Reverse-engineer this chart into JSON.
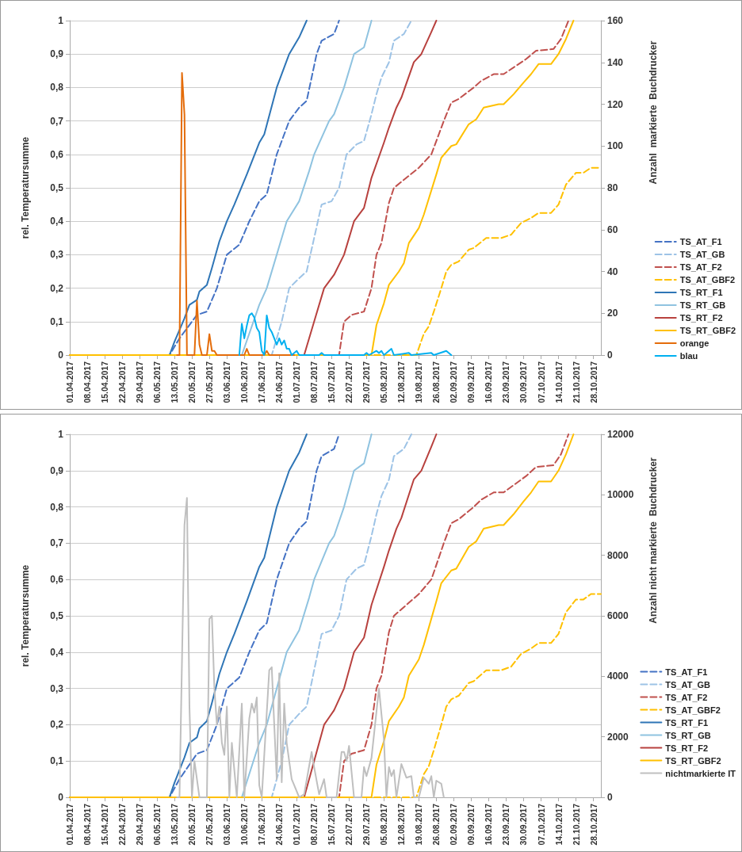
{
  "chart_data": [
    {
      "type": "line",
      "ylabel": "rel. Temperatursumme",
      "y2label": "Anzahl  markierte  Buchdrucker",
      "grid": "y",
      "legend": "right",
      "marker": "none",
      "xlim": [
        "2017-04-01",
        "2017-10-31"
      ],
      "xticks": [
        {
          "value": "2017-04-01",
          "label": "01.04.2017"
        },
        {
          "value": "2017-04-08",
          "label": "08.04.2017"
        },
        {
          "value": "2017-04-15",
          "label": "15.04.2017"
        },
        {
          "value": "2017-04-22",
          "label": "22.04.2017"
        },
        {
          "value": "2017-04-29",
          "label": "29.04.2017"
        },
        {
          "value": "2017-05-06",
          "label": "06.05.2017"
        },
        {
          "value": "2017-05-13",
          "label": "13.05.2017"
        },
        {
          "value": "2017-05-20",
          "label": "20.05.2017"
        },
        {
          "value": "2017-05-27",
          "label": "27.05.2017"
        },
        {
          "value": "2017-06-03",
          "label": "03.06.2017"
        },
        {
          "value": "2017-06-10",
          "label": "10.06.2017"
        },
        {
          "value": "2017-06-17",
          "label": "17.06.2017"
        },
        {
          "value": "2017-06-24",
          "label": "24.06.2017"
        },
        {
          "value": "2017-07-01",
          "label": "01.07.2017"
        },
        {
          "value": "2017-07-08",
          "label": "08.07.2017"
        },
        {
          "value": "2017-07-15",
          "label": "15.07.2017"
        },
        {
          "value": "2017-07-22",
          "label": "22.07.2017"
        },
        {
          "value": "2017-07-29",
          "label": "29.07.2017"
        },
        {
          "value": "2017-08-05",
          "label": "05.08.2017"
        },
        {
          "value": "2017-08-12",
          "label": "12.08.2017"
        },
        {
          "value": "2017-08-19",
          "label": "19.08.2017"
        },
        {
          "value": "2017-08-26",
          "label": "26.08.2017"
        },
        {
          "value": "2017-09-02",
          "label": "02.09.2017"
        },
        {
          "value": "2017-09-09",
          "label": "09.09.2017"
        },
        {
          "value": "2017-09-16",
          "label": "16.09.2017"
        },
        {
          "value": "2017-09-23",
          "label": "23.09.2017"
        },
        {
          "value": "2017-09-30",
          "label": "30.09.2017"
        },
        {
          "value": "2017-10-07",
          "label": "07.10.2017"
        },
        {
          "value": "2017-10-14",
          "label": "14.10.2017"
        },
        {
          "value": "2017-10-21",
          "label": "21.10.2017"
        },
        {
          "value": "2017-10-28",
          "label": "28.10.2017"
        }
      ],
      "ylim": [
        0,
        1
      ],
      "yticks": [
        {
          "value": 0,
          "label": "0"
        },
        {
          "value": 0.1,
          "label": "0,1"
        },
        {
          "value": 0.2,
          "label": "0,2"
        },
        {
          "value": 0.3,
          "label": "0,3"
        },
        {
          "value": 0.4,
          "label": "0,4"
        },
        {
          "value": 0.5,
          "label": "0,5"
        },
        {
          "value": 0.6,
          "label": "0,6"
        },
        {
          "value": 0.7,
          "label": "0,7"
        },
        {
          "value": 0.8,
          "label": "0,8"
        },
        {
          "value": 0.9,
          "label": "0,9"
        },
        {
          "value": 1,
          "label": "1"
        }
      ],
      "y2lim": [
        0,
        160
      ],
      "y2ticks": [
        0,
        20,
        40,
        60,
        80,
        100,
        120,
        140,
        160
      ],
      "series": [
        {
          "name": "TS_AT_F1",
          "color": "#4472c4",
          "line_style": "dashed",
          "x": [
            "2017-04-01",
            "2017-05-11",
            "2017-05-15",
            "2017-05-22",
            "2017-05-26",
            "2017-05-30",
            "2017-06-03",
            "2017-06-08",
            "2017-06-12",
            "2017-06-16",
            "2017-06-19",
            "2017-06-23",
            "2017-06-28",
            "2017-07-02",
            "2017-07-05",
            "2017-07-09",
            "2017-07-11",
            "2017-07-16",
            "2017-07-18"
          ],
          "values": [
            0,
            0,
            0.05,
            0.12,
            0.13,
            0.2,
            0.3,
            0.33,
            0.4,
            0.46,
            0.48,
            0.6,
            0.7,
            0.74,
            0.76,
            0.9,
            0.94,
            0.96,
            1
          ]
        },
        {
          "name": "TS_AT_GB",
          "color": "#9dc3e6",
          "line_style": "dashed",
          "x": [
            "2017-04-01",
            "2017-06-21",
            "2017-06-25",
            "2017-06-28",
            "2017-07-02",
            "2017-07-05",
            "2017-07-11",
            "2017-07-15",
            "2017-07-18",
            "2017-07-21",
            "2017-07-25",
            "2017-07-28",
            "2017-07-31",
            "2017-08-02",
            "2017-08-04",
            "2017-08-07",
            "2017-08-09",
            "2017-08-13",
            "2017-08-16"
          ],
          "values": [
            0,
            0,
            0.1,
            0.2,
            0.23,
            0.25,
            0.45,
            0.46,
            0.5,
            0.6,
            0.63,
            0.64,
            0.72,
            0.78,
            0.83,
            0.875,
            0.94,
            0.96,
            1
          ]
        },
        {
          "name": "TS_AT_F2",
          "color": "#c0504d",
          "line_style": "dashed",
          "x": [
            "2017-04-01",
            "2017-07-18",
            "2017-07-20",
            "2017-07-23",
            "2017-07-28",
            "2017-07-31",
            "2017-08-02",
            "2017-08-04",
            "2017-08-07",
            "2017-08-09",
            "2017-08-14",
            "2017-08-19",
            "2017-08-24",
            "2017-08-29",
            "2017-09-01",
            "2017-09-04",
            "2017-09-10",
            "2017-09-13",
            "2017-09-18",
            "2017-09-22",
            "2017-09-26",
            "2017-10-01",
            "2017-10-05",
            "2017-10-12",
            "2017-10-15",
            "2017-10-18"
          ],
          "values": [
            0,
            0,
            0.1,
            0.12,
            0.13,
            0.2,
            0.3,
            0.335,
            0.455,
            0.5,
            0.53,
            0.56,
            0.6,
            0.7,
            0.755,
            0.766,
            0.8,
            0.82,
            0.84,
            0.84,
            0.86,
            0.885,
            0.91,
            0.915,
            0.945,
            1
          ]
        },
        {
          "name": "TS_AT_GBF2",
          "color": "#ffc000",
          "line_style": "dashed",
          "x": [
            "2017-04-01",
            "2017-08-18",
            "2017-08-21",
            "2017-08-23",
            "2017-08-25",
            "2017-08-28",
            "2017-08-30",
            "2017-09-01",
            "2017-09-04",
            "2017-09-08",
            "2017-09-10",
            "2017-09-15",
            "2017-09-21",
            "2017-09-25",
            "2017-09-29",
            "2017-10-03",
            "2017-10-06",
            "2017-10-11",
            "2017-10-14",
            "2017-10-17",
            "2017-10-21",
            "2017-10-24",
            "2017-10-27",
            "2017-10-31"
          ],
          "values": [
            0,
            0,
            0.064,
            0.086,
            0.13,
            0.2,
            0.25,
            0.27,
            0.28,
            0.315,
            0.32,
            0.35,
            0.35,
            0.36,
            0.395,
            0.41,
            0.425,
            0.425,
            0.45,
            0.51,
            0.545,
            0.545,
            0.56,
            0.56
          ]
        },
        {
          "name": "TS_RT_F1",
          "color": "#2e75b6",
          "line_style": "solid",
          "x": [
            "2017-04-01",
            "2017-05-11",
            "2017-05-13",
            "2017-05-17",
            "2017-05-19",
            "2017-05-22",
            "2017-05-23",
            "2017-05-26",
            "2017-05-28",
            "2017-05-31",
            "2017-06-03",
            "2017-06-06",
            "2017-06-11",
            "2017-06-16",
            "2017-06-18",
            "2017-06-23",
            "2017-06-28",
            "2017-07-02",
            "2017-07-05"
          ],
          "values": [
            0,
            0,
            0.04,
            0.11,
            0.15,
            0.165,
            0.19,
            0.21,
            0.26,
            0.34,
            0.4,
            0.45,
            0.54,
            0.635,
            0.66,
            0.8,
            0.9,
            0.95,
            1
          ]
        },
        {
          "name": "TS_RT_GB",
          "color": "#8fc3e0",
          "line_style": "solid",
          "x": [
            "2017-04-01",
            "2017-06-09",
            "2017-06-16",
            "2017-06-19",
            "2017-06-27",
            "2017-07-02",
            "2017-07-06",
            "2017-07-08",
            "2017-07-14",
            "2017-07-16",
            "2017-07-20",
            "2017-07-24",
            "2017-07-28",
            "2017-07-31"
          ],
          "values": [
            0,
            0,
            0.15,
            0.2,
            0.4,
            0.46,
            0.55,
            0.6,
            0.7,
            0.72,
            0.8,
            0.9,
            0.92,
            1
          ]
        },
        {
          "name": "TS_RT_F2",
          "color": "#b8413e",
          "line_style": "solid",
          "x": [
            "2017-04-01",
            "2017-07-04",
            "2017-07-08",
            "2017-07-12",
            "2017-07-14",
            "2017-07-16",
            "2017-07-20",
            "2017-07-24",
            "2017-07-28",
            "2017-07-31",
            "2017-08-05",
            "2017-08-07",
            "2017-08-10",
            "2017-08-12",
            "2017-08-17",
            "2017-08-20",
            "2017-08-24",
            "2017-08-26"
          ],
          "values": [
            0,
            0,
            0.1,
            0.2,
            0.22,
            0.24,
            0.3,
            0.4,
            0.44,
            0.53,
            0.635,
            0.68,
            0.74,
            0.77,
            0.876,
            0.9,
            0.966,
            1
          ]
        },
        {
          "name": "TS_RT_GBF2",
          "color": "#ffc000",
          "line_style": "solid",
          "x": [
            "2017-04-01",
            "2017-07-31",
            "2017-08-02",
            "2017-08-05",
            "2017-08-07",
            "2017-08-11",
            "2017-08-13",
            "2017-08-15",
            "2017-08-19",
            "2017-08-21",
            "2017-08-26",
            "2017-08-28",
            "2017-09-01",
            "2017-09-03",
            "2017-09-08",
            "2017-09-11",
            "2017-09-14",
            "2017-09-20",
            "2017-09-22",
            "2017-09-26",
            "2017-09-30",
            "2017-10-03",
            "2017-10-06",
            "2017-10-11",
            "2017-10-14",
            "2017-10-17",
            "2017-10-20"
          ],
          "values": [
            0,
            0,
            0.09,
            0.155,
            0.21,
            0.25,
            0.275,
            0.335,
            0.38,
            0.42,
            0.54,
            0.59,
            0.625,
            0.63,
            0.69,
            0.705,
            0.74,
            0.75,
            0.75,
            0.78,
            0.815,
            0.84,
            0.87,
            0.87,
            0.9,
            0.945,
            1
          ]
        },
        {
          "name": "orange",
          "color": "#e46c0a",
          "line_style": "solid",
          "axis": "y2",
          "x": [
            "2017-05-14",
            "2017-05-15",
            "2017-05-16",
            "2017-05-17",
            "2017-05-18",
            "2017-05-21",
            "2017-05-22",
            "2017-05-23",
            "2017-05-24",
            "2017-05-26",
            "2017-05-27",
            "2017-05-28",
            "2017-05-29",
            "2017-05-30",
            "2017-06-10",
            "2017-06-11",
            "2017-06-12",
            "2017-06-18",
            "2017-06-19",
            "2017-06-20",
            "2017-06-30"
          ],
          "values": [
            0,
            0,
            135,
            115,
            0,
            0,
            26,
            5,
            0,
            0,
            10,
            2,
            2,
            0,
            0,
            3,
            0,
            0,
            2,
            0,
            0
          ]
        },
        {
          "name": "blau",
          "color": "#00b0f0",
          "line_style": "solid",
          "axis": "y2",
          "x": [
            "2017-06-08",
            "2017-06-09",
            "2017-06-10",
            "2017-06-11",
            "2017-06-12",
            "2017-06-13",
            "2017-06-14",
            "2017-06-15",
            "2017-06-16",
            "2017-06-17",
            "2017-06-18",
            "2017-06-19",
            "2017-06-20",
            "2017-06-21",
            "2017-06-22",
            "2017-06-23",
            "2017-06-24",
            "2017-06-25",
            "2017-06-26",
            "2017-06-27",
            "2017-06-28",
            "2017-06-29",
            "2017-07-01",
            "2017-07-02",
            "2017-07-10",
            "2017-07-11",
            "2017-07-12",
            "2017-07-28",
            "2017-07-29",
            "2017-07-30",
            "2017-08-02",
            "2017-08-03",
            "2017-08-04",
            "2017-08-05",
            "2017-08-08",
            "2017-08-09",
            "2017-08-15",
            "2017-08-16",
            "2017-08-24",
            "2017-08-25",
            "2017-08-30",
            "2017-09-01"
          ],
          "values": [
            0,
            15,
            8,
            14,
            19,
            20,
            18,
            13,
            11,
            2,
            0,
            19,
            13,
            11,
            8,
            5,
            8,
            5,
            7,
            3,
            3,
            0,
            2,
            0,
            0,
            1,
            0,
            0,
            1,
            0,
            2,
            1,
            2,
            0,
            3,
            0,
            1,
            0,
            1,
            0,
            2,
            0
          ]
        }
      ]
    },
    {
      "type": "line",
      "ylabel": "rel. Temperatursumme",
      "y2label": "Anzahl nicht markierte  Buchdrucker",
      "grid": "y",
      "legend": "right",
      "marker": "none",
      "xlim": [
        "2017-04-01",
        "2017-10-31"
      ],
      "xticks": [
        {
          "value": "2017-04-01",
          "label": "01.04.2017"
        },
        {
          "value": "2017-04-08",
          "label": "08.04.2017"
        },
        {
          "value": "2017-04-15",
          "label": "15.04.2017"
        },
        {
          "value": "2017-04-22",
          "label": "22.04.2017"
        },
        {
          "value": "2017-04-29",
          "label": "29.04.2017"
        },
        {
          "value": "2017-05-06",
          "label": "06.05.2017"
        },
        {
          "value": "2017-05-13",
          "label": "13.05.2017"
        },
        {
          "value": "2017-05-20",
          "label": "20.05.2017"
        },
        {
          "value": "2017-05-27",
          "label": "27.05.2017"
        },
        {
          "value": "2017-06-03",
          "label": "03.06.2017"
        },
        {
          "value": "2017-06-10",
          "label": "10.06.2017"
        },
        {
          "value": "2017-06-17",
          "label": "17.06.2017"
        },
        {
          "value": "2017-06-24",
          "label": "24.06.2017"
        },
        {
          "value": "2017-07-01",
          "label": "01.07.2017"
        },
        {
          "value": "2017-07-08",
          "label": "08.07.2017"
        },
        {
          "value": "2017-07-15",
          "label": "15.07.2017"
        },
        {
          "value": "2017-07-22",
          "label": "22.07.2017"
        },
        {
          "value": "2017-07-29",
          "label": "29.07.2017"
        },
        {
          "value": "2017-08-05",
          "label": "05.08.2017"
        },
        {
          "value": "2017-08-12",
          "label": "12.08.2017"
        },
        {
          "value": "2017-08-19",
          "label": "19.08.2017"
        },
        {
          "value": "2017-08-26",
          "label": "26.08.2017"
        },
        {
          "value": "2017-09-02",
          "label": "02.09.2017"
        },
        {
          "value": "2017-09-09",
          "label": "09.09.2017"
        },
        {
          "value": "2017-09-16",
          "label": "16.09.2017"
        },
        {
          "value": "2017-09-23",
          "label": "23.09.2017"
        },
        {
          "value": "2017-09-30",
          "label": "30.09.2017"
        },
        {
          "value": "2017-10-07",
          "label": "07.10.2017"
        },
        {
          "value": "2017-10-14",
          "label": "14.10.2017"
        },
        {
          "value": "2017-10-21",
          "label": "21.10.2017"
        },
        {
          "value": "2017-10-28",
          "label": "28.10.2017"
        }
      ],
      "ylim": [
        0,
        1
      ],
      "yticks": [
        {
          "value": 0,
          "label": "0"
        },
        {
          "value": 0.1,
          "label": "0,1"
        },
        {
          "value": 0.2,
          "label": "0,2"
        },
        {
          "value": 0.3,
          "label": "0,3"
        },
        {
          "value": 0.4,
          "label": "0,4"
        },
        {
          "value": 0.5,
          "label": "0,5"
        },
        {
          "value": 0.6,
          "label": "0,6"
        },
        {
          "value": 0.7,
          "label": "0,7"
        },
        {
          "value": 0.8,
          "label": "0,8"
        },
        {
          "value": 0.9,
          "label": "0,9"
        },
        {
          "value": 1,
          "label": "1"
        }
      ],
      "y2lim": [
        0,
        12000
      ],
      "y2ticks": [
        0,
        2000,
        4000,
        6000,
        8000,
        10000,
        12000
      ],
      "series": [
        {
          "name": "TS_AT_F1",
          "color": "#4472c4",
          "line_style": "dashed",
          "x": [
            "2017-04-01",
            "2017-05-11",
            "2017-05-15",
            "2017-05-22",
            "2017-05-26",
            "2017-05-30",
            "2017-06-03",
            "2017-06-08",
            "2017-06-12",
            "2017-06-16",
            "2017-06-19",
            "2017-06-23",
            "2017-06-28",
            "2017-07-02",
            "2017-07-05",
            "2017-07-09",
            "2017-07-11",
            "2017-07-16",
            "2017-07-18"
          ],
          "values": [
            0,
            0,
            0.05,
            0.12,
            0.13,
            0.2,
            0.3,
            0.33,
            0.4,
            0.46,
            0.48,
            0.6,
            0.7,
            0.74,
            0.76,
            0.9,
            0.94,
            0.96,
            1
          ]
        },
        {
          "name": "TS_AT_GB",
          "color": "#9dc3e6",
          "line_style": "dashed",
          "x": [
            "2017-04-01",
            "2017-06-21",
            "2017-06-25",
            "2017-06-28",
            "2017-07-02",
            "2017-07-05",
            "2017-07-11",
            "2017-07-15",
            "2017-07-18",
            "2017-07-21",
            "2017-07-25",
            "2017-07-28",
            "2017-07-31",
            "2017-08-02",
            "2017-08-04",
            "2017-08-07",
            "2017-08-09",
            "2017-08-13",
            "2017-08-16"
          ],
          "values": [
            0,
            0,
            0.1,
            0.2,
            0.23,
            0.25,
            0.45,
            0.46,
            0.5,
            0.6,
            0.63,
            0.64,
            0.72,
            0.78,
            0.83,
            0.875,
            0.94,
            0.96,
            1
          ]
        },
        {
          "name": "TS_AT_F2",
          "color": "#c0504d",
          "line_style": "dashed",
          "x": [
            "2017-04-01",
            "2017-07-18",
            "2017-07-20",
            "2017-07-23",
            "2017-07-28",
            "2017-07-31",
            "2017-08-02",
            "2017-08-04",
            "2017-08-07",
            "2017-08-09",
            "2017-08-14",
            "2017-08-19",
            "2017-08-24",
            "2017-08-29",
            "2017-09-01",
            "2017-09-04",
            "2017-09-10",
            "2017-09-13",
            "2017-09-18",
            "2017-09-22",
            "2017-09-26",
            "2017-10-01",
            "2017-10-05",
            "2017-10-12",
            "2017-10-15",
            "2017-10-18"
          ],
          "values": [
            0,
            0,
            0.1,
            0.12,
            0.13,
            0.2,
            0.3,
            0.335,
            0.455,
            0.5,
            0.53,
            0.56,
            0.6,
            0.7,
            0.755,
            0.766,
            0.8,
            0.82,
            0.84,
            0.84,
            0.86,
            0.885,
            0.91,
            0.915,
            0.945,
            1
          ]
        },
        {
          "name": "TS_AT_GBF2",
          "color": "#ffc000",
          "line_style": "dashed",
          "x": [
            "2017-04-01",
            "2017-08-18",
            "2017-08-21",
            "2017-08-23",
            "2017-08-25",
            "2017-08-28",
            "2017-08-30",
            "2017-09-01",
            "2017-09-04",
            "2017-09-08",
            "2017-09-10",
            "2017-09-15",
            "2017-09-21",
            "2017-09-25",
            "2017-09-29",
            "2017-10-03",
            "2017-10-06",
            "2017-10-11",
            "2017-10-14",
            "2017-10-17",
            "2017-10-21",
            "2017-10-24",
            "2017-10-27",
            "2017-10-31"
          ],
          "values": [
            0,
            0,
            0.064,
            0.086,
            0.13,
            0.2,
            0.25,
            0.27,
            0.28,
            0.315,
            0.32,
            0.35,
            0.35,
            0.36,
            0.395,
            0.41,
            0.425,
            0.425,
            0.45,
            0.51,
            0.545,
            0.545,
            0.56,
            0.56
          ]
        },
        {
          "name": "TS_RT_F1",
          "color": "#2e75b6",
          "line_style": "solid",
          "x": [
            "2017-04-01",
            "2017-05-11",
            "2017-05-13",
            "2017-05-17",
            "2017-05-19",
            "2017-05-22",
            "2017-05-23",
            "2017-05-26",
            "2017-05-28",
            "2017-05-31",
            "2017-06-03",
            "2017-06-06",
            "2017-06-11",
            "2017-06-16",
            "2017-06-18",
            "2017-06-23",
            "2017-06-28",
            "2017-07-02",
            "2017-07-05"
          ],
          "values": [
            0,
            0,
            0.04,
            0.11,
            0.15,
            0.165,
            0.19,
            0.21,
            0.26,
            0.34,
            0.4,
            0.45,
            0.54,
            0.635,
            0.66,
            0.8,
            0.9,
            0.95,
            1
          ]
        },
        {
          "name": "TS_RT_GB",
          "color": "#8fc3e0",
          "line_style": "solid",
          "x": [
            "2017-04-01",
            "2017-06-09",
            "2017-06-16",
            "2017-06-19",
            "2017-06-27",
            "2017-07-02",
            "2017-07-06",
            "2017-07-08",
            "2017-07-14",
            "2017-07-16",
            "2017-07-20",
            "2017-07-24",
            "2017-07-28",
            "2017-07-31"
          ],
          "values": [
            0,
            0,
            0.15,
            0.2,
            0.4,
            0.46,
            0.55,
            0.6,
            0.7,
            0.72,
            0.8,
            0.9,
            0.92,
            1
          ]
        },
        {
          "name": "TS_RT_F2",
          "color": "#b8413e",
          "line_style": "solid",
          "x": [
            "2017-04-01",
            "2017-07-04",
            "2017-07-08",
            "2017-07-12",
            "2017-07-14",
            "2017-07-16",
            "2017-07-20",
            "2017-07-24",
            "2017-07-28",
            "2017-07-31",
            "2017-08-05",
            "2017-08-07",
            "2017-08-10",
            "2017-08-12",
            "2017-08-17",
            "2017-08-20",
            "2017-08-24",
            "2017-08-26"
          ],
          "values": [
            0,
            0,
            0.1,
            0.2,
            0.22,
            0.24,
            0.3,
            0.4,
            0.44,
            0.53,
            0.635,
            0.68,
            0.74,
            0.77,
            0.876,
            0.9,
            0.966,
            1
          ]
        },
        {
          "name": "TS_RT_GBF2",
          "color": "#ffc000",
          "line_style": "solid",
          "x": [
            "2017-04-01",
            "2017-07-31",
            "2017-08-02",
            "2017-08-05",
            "2017-08-07",
            "2017-08-11",
            "2017-08-13",
            "2017-08-15",
            "2017-08-19",
            "2017-08-21",
            "2017-08-26",
            "2017-08-28",
            "2017-09-01",
            "2017-09-03",
            "2017-09-08",
            "2017-09-11",
            "2017-09-14",
            "2017-09-20",
            "2017-09-22",
            "2017-09-26",
            "2017-09-30",
            "2017-10-03",
            "2017-10-06",
            "2017-10-11",
            "2017-10-14",
            "2017-10-17",
            "2017-10-20"
          ],
          "values": [
            0,
            0,
            0.09,
            0.155,
            0.21,
            0.25,
            0.275,
            0.335,
            0.38,
            0.42,
            0.54,
            0.59,
            0.625,
            0.63,
            0.69,
            0.705,
            0.74,
            0.75,
            0.75,
            0.78,
            0.815,
            0.84,
            0.87,
            0.87,
            0.9,
            0.945,
            1
          ]
        },
        {
          "name": "nichtmarkierte IT",
          "color": "#bfbfbf",
          "line_style": "solid",
          "axis": "y2",
          "x": [
            "2017-05-14",
            "2017-05-15",
            "2017-05-17",
            "2017-05-18",
            "2017-05-19",
            "2017-05-20",
            "2017-05-21",
            "2017-05-23",
            "2017-05-26",
            "2017-05-27",
            "2017-05-28",
            "2017-05-29",
            "2017-05-30",
            "2017-05-31",
            "2017-06-01",
            "2017-06-02",
            "2017-06-03",
            "2017-06-04",
            "2017-06-05",
            "2017-06-07",
            "2017-06-09",
            "2017-06-10",
            "2017-06-12",
            "2017-06-13",
            "2017-06-14",
            "2017-06-15",
            "2017-06-16",
            "2017-06-17",
            "2017-06-20",
            "2017-06-21",
            "2017-06-22",
            "2017-06-23",
            "2017-06-24",
            "2017-06-25",
            "2017-06-26",
            "2017-06-27",
            "2017-06-29",
            "2017-06-30",
            "2017-07-02",
            "2017-07-04",
            "2017-07-07",
            "2017-07-08",
            "2017-07-10",
            "2017-07-12",
            "2017-07-13",
            "2017-07-17",
            "2017-07-19",
            "2017-07-20",
            "2017-07-21",
            "2017-07-22",
            "2017-07-24",
            "2017-07-27",
            "2017-07-28",
            "2017-07-29",
            "2017-07-31",
            "2017-08-03",
            "2017-08-05",
            "2017-08-06",
            "2017-08-07",
            "2017-08-08",
            "2017-08-09",
            "2017-08-10",
            "2017-08-12",
            "2017-08-14",
            "2017-08-16",
            "2017-08-17",
            "2017-08-19",
            "2017-08-21",
            "2017-08-23",
            "2017-08-24",
            "2017-08-25",
            "2017-08-26",
            "2017-08-28",
            "2017-08-29"
          ],
          "values": [
            0,
            0,
            9000,
            9900,
            3000,
            0,
            1200,
            0,
            0,
            5900,
            6000,
            3600,
            2400,
            3000,
            1800,
            1400,
            3000,
            0,
            1800,
            0,
            3100,
            0,
            2600,
            3100,
            2800,
            3300,
            400,
            0,
            4200,
            4300,
            2400,
            600,
            4100,
            500,
            3100,
            1800,
            600,
            400,
            0,
            100,
            1500,
            1000,
            100,
            600,
            0,
            0,
            1500,
            1500,
            1200,
            1700,
            0,
            0,
            1000,
            700,
            1300,
            3600,
            1900,
            0,
            1000,
            700,
            900,
            0,
            1100,
            650,
            700,
            0,
            0,
            650,
            450,
            700,
            0,
            550,
            450,
            0
          ]
        }
      ]
    }
  ]
}
